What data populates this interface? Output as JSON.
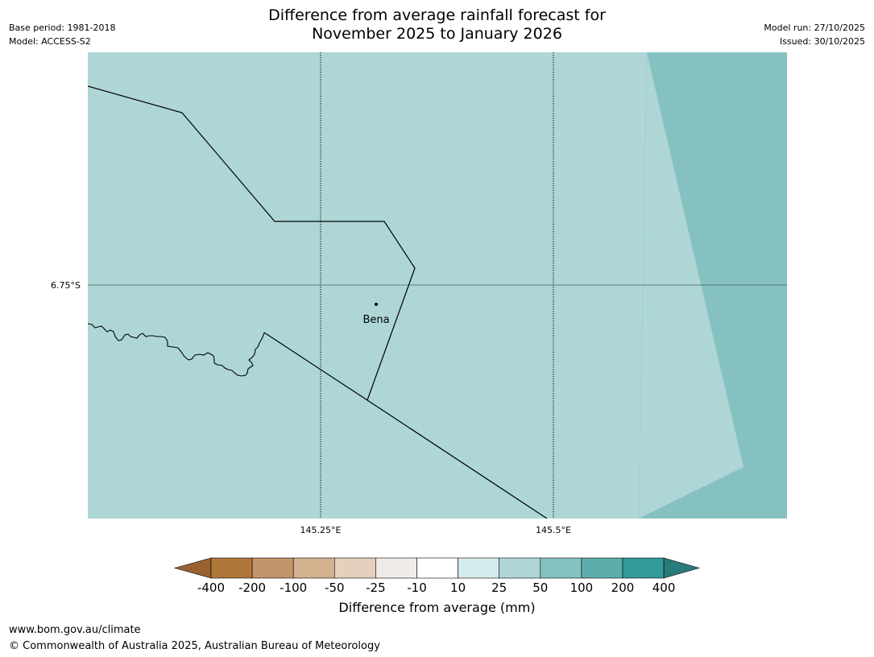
{
  "header": {
    "title_line1": "Difference from average rainfall forecast for",
    "title_line2": "November 2025 to January 2026",
    "base_period": "Base period: 1981-2018",
    "model": "Model: ACCESS-S2",
    "model_run": "Model run: 27/10/2025",
    "issued": "Issued: 30/10/2025"
  },
  "map": {
    "lat_label": "6.75°S",
    "lon_labels": [
      "145.25°E",
      "145.5°E"
    ],
    "place": {
      "name": "Bena"
    },
    "colors": {
      "main_fill": "#aed6d6",
      "east_fill": "#86c1c1",
      "border": "#000000",
      "gridline": "#000000"
    }
  },
  "legend": {
    "title": "Difference from average (mm)",
    "tick_labels": [
      "-400",
      "-200",
      "-100",
      "-50",
      "-25",
      "-10",
      "10",
      "25",
      "50",
      "100",
      "200",
      "400"
    ],
    "colors": [
      "#9b6231",
      "#b0773b",
      "#c3956a",
      "#d4b290",
      "#e5d0bd",
      "#efebe7",
      "#ffffff",
      "#d5eaea",
      "#aed6d6",
      "#86c1c1",
      "#5eadad",
      "#339a9a",
      "#2a7b7b"
    ]
  },
  "footer": {
    "url": "www.bom.gov.au/climate",
    "copyright": "© Commonwealth of Australia 2025, Australian Bureau of Meteorology"
  }
}
